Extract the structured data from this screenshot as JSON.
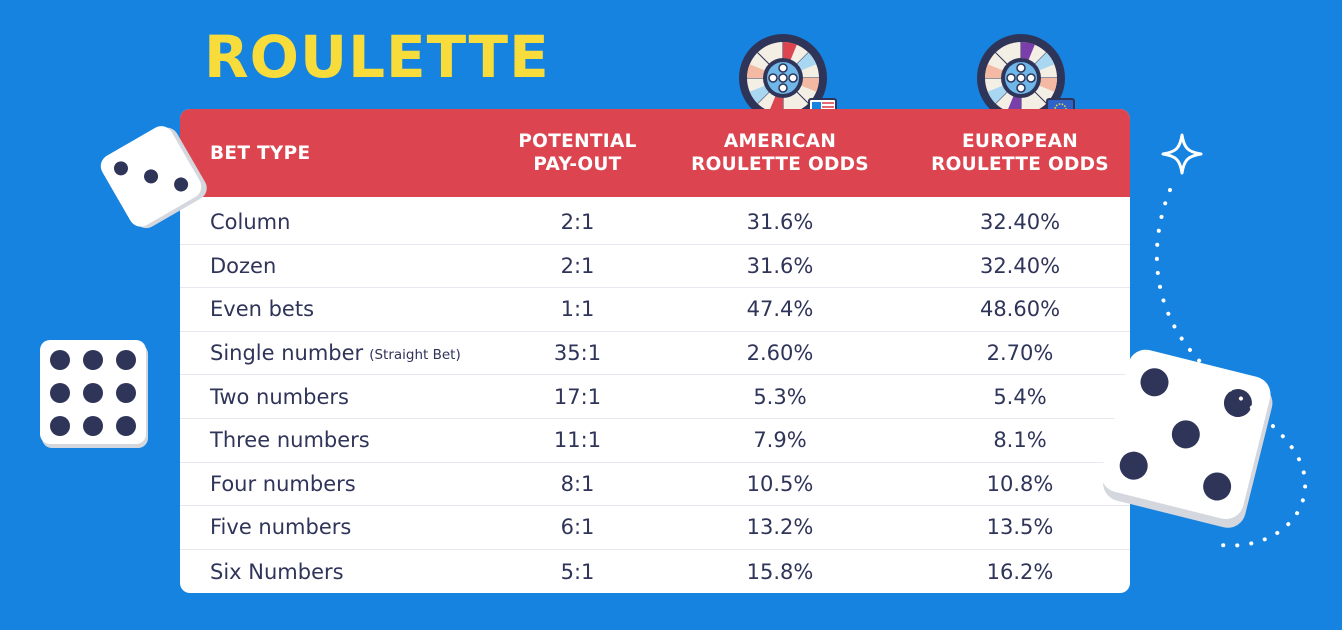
{
  "title": "ROULETTE",
  "colors": {
    "background": "#1583df",
    "title": "#f7dc3b",
    "header": "#dc454f",
    "text": "#2f3459",
    "dice_pip": "#2f3459"
  },
  "table": {
    "headers": [
      [
        "BET TYPE"
      ],
      [
        "POTENTIAL",
        "PAY-OUT"
      ],
      [
        "AMERICAN",
        "ROULETTE ODDS"
      ],
      [
        "EUROPEAN",
        "ROULETTE ODDS"
      ]
    ],
    "rows": [
      {
        "bet": "Column",
        "note": "",
        "payout": "2:1",
        "american": "31.6%",
        "european": "32.40%"
      },
      {
        "bet": "Dozen",
        "note": "",
        "payout": "2:1",
        "american": "31.6%",
        "european": "32.40%"
      },
      {
        "bet": "Even bets",
        "note": "",
        "payout": "1:1",
        "american": "47.4%",
        "european": "48.60%"
      },
      {
        "bet": "Single number",
        "note": "(Straight Bet)",
        "payout": "35:1",
        "american": "2.60%",
        "european": "2.70%"
      },
      {
        "bet": "Two numbers",
        "note": "",
        "payout": "17:1",
        "american": "5.3%",
        "european": "5.4%"
      },
      {
        "bet": "Three numbers",
        "note": "",
        "payout": "11:1",
        "american": "7.9%",
        "european": "8.1%"
      },
      {
        "bet": "Four numbers",
        "note": "",
        "payout": "8:1",
        "american": "10.5%",
        "european": "10.8%"
      },
      {
        "bet": "Five numbers",
        "note": "",
        "payout": "6:1",
        "american": "13.2%",
        "european": "13.5%"
      },
      {
        "bet": "Six Numbers",
        "note": "",
        "payout": "5:1",
        "american": "15.8%",
        "european": "16.2%"
      }
    ]
  },
  "icons": {
    "american_wheel": "roulette-wheel-us-flag-icon",
    "european_wheel": "roulette-wheel-eu-flag-icon",
    "dice": [
      "dice-three-icon",
      "dice-nine-icon",
      "dice-five-icon"
    ],
    "sparkle": "sparkle-icon"
  }
}
